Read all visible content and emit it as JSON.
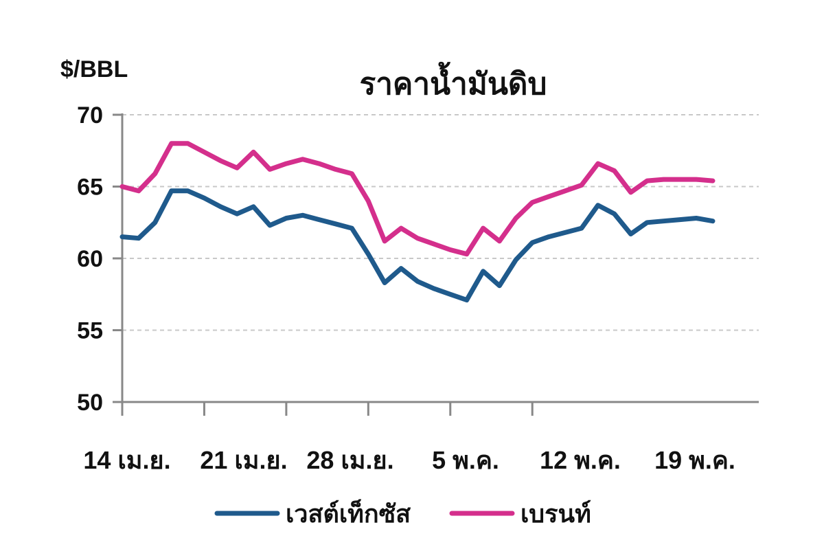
{
  "chart_data": {
    "type": "line",
    "title": "ราคาน้ำมันดิบ",
    "ylabel": "$/BBL",
    "xlabel": "",
    "ylim": [
      50,
      70
    ],
    "yticks": [
      50,
      55,
      60,
      65,
      70
    ],
    "grid": true,
    "grid_style": "dashed horizontal",
    "legend_position": "bottom",
    "x_tick_labels": [
      "14 เม.ย.",
      "21 เม.ย.",
      "28 เม.ย.",
      "5 พ.ค.",
      "12 พ.ค.",
      "19 พ.ค."
    ],
    "x_tick_indices": [
      0,
      5,
      10,
      15,
      20,
      25
    ],
    "series": [
      {
        "name": "เวสต์เท็กซัส",
        "color": "#1f5a8c",
        "values": [
          61.5,
          61.4,
          62.5,
          64.7,
          64.7,
          64.2,
          63.6,
          63.1,
          63.6,
          62.3,
          62.8,
          63.0,
          62.7,
          62.4,
          62.1,
          60.3,
          58.3,
          59.3,
          58.4,
          57.9,
          57.5,
          57.1,
          59.1,
          58.1,
          59.9,
          61.1,
          61.5,
          61.8,
          62.1,
          63.7,
          63.1,
          61.7,
          62.5,
          62.6,
          62.7,
          62.8,
          62.6
        ]
      },
      {
        "name": "เบรนท์",
        "color": "#d42f8c",
        "values": [
          65.0,
          64.7,
          65.9,
          68.0,
          68.0,
          67.4,
          66.8,
          66.3,
          67.4,
          66.2,
          66.6,
          66.9,
          66.6,
          66.2,
          65.9,
          64.0,
          61.2,
          62.1,
          61.4,
          61.0,
          60.6,
          60.3,
          62.1,
          61.2,
          62.8,
          63.9,
          64.3,
          64.7,
          65.1,
          66.6,
          66.1,
          64.6,
          65.4,
          65.5,
          65.5,
          65.5,
          65.4
        ]
      }
    ]
  }
}
